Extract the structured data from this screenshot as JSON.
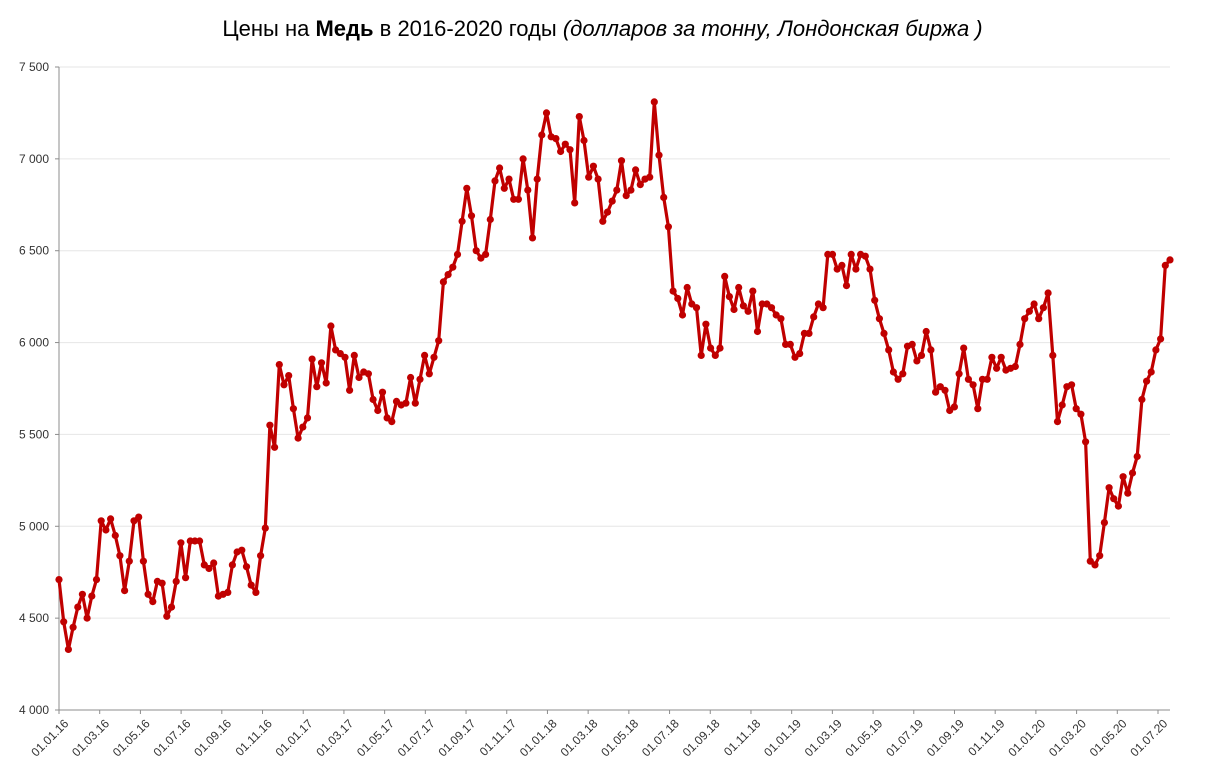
{
  "title": {
    "prefix": "Цены на ",
    "bold": "Медь",
    "middle": " в 2016-2020 годы ",
    "italic": "(долларов за тонну, Лондонская биржа )"
  },
  "chart_data": {
    "type": "line",
    "title": "Цены на Медь в 2016-2020 годы (долларов за тонну, Лондонская биржа )",
    "xlabel": "",
    "ylabel": "",
    "ylim": [
      4000,
      7500
    ],
    "y_ticks": [
      4000,
      4500,
      5000,
      5500,
      6000,
      6500,
      7000,
      7500
    ],
    "y_tick_labels": [
      "4 000",
      "4 500",
      "5 000",
      "5 500",
      "6 000",
      "6 500",
      "7 000",
      "7 500"
    ],
    "x_tick_labels": [
      "01.01.16",
      "01.03.16",
      "01.05.16",
      "01.07.16",
      "01.09.16",
      "01.11.16",
      "01.01.17",
      "01.03.17",
      "01.05.17",
      "01.07.17",
      "01.09.17",
      "01.11.17",
      "01.01.18",
      "01.03.18",
      "01.05.18",
      "01.07.18",
      "01.09.18",
      "01.11.18",
      "01.01.19",
      "01.03.19",
      "01.05.19",
      "01.07.19",
      "01.09.19",
      "01.11.19",
      "01.01.20",
      "01.03.20",
      "01.05.20",
      "01.07.20"
    ],
    "grid": true,
    "legend": "none",
    "line_color": "#c00000",
    "series": [
      {
        "values": [
          4710,
          4480,
          4330,
          4450,
          4560,
          4630,
          4500,
          4620,
          4710,
          5030,
          4980,
          5040,
          4950,
          4840,
          4650,
          4810,
          5030,
          5050,
          4810,
          4630,
          4590,
          4700,
          4690,
          4510,
          4560,
          4700,
          4910,
          4720,
          4920,
          4920,
          4920,
          4790,
          4770,
          4800,
          4620,
          4630,
          4640,
          4790,
          4860,
          4870,
          4780,
          4680,
          4640,
          4840,
          4990,
          5550,
          5430,
          5880,
          5770,
          5820,
          5640,
          5480,
          5540,
          5590,
          5910,
          5760,
          5890,
          5780,
          6090,
          5960,
          5940,
          5920,
          5740,
          5930,
          5810,
          5840,
          5830,
          5690,
          5630,
          5730,
          5590,
          5570,
          5680,
          5660,
          5670,
          5810,
          5670,
          5800,
          5930,
          5830,
          5920,
          6010,
          6330,
          6370,
          6410,
          6480,
          6660,
          6840,
          6690,
          6500,
          6460,
          6480,
          6670,
          6880,
          6950,
          6840,
          6890,
          6780,
          6780,
          7000,
          6830,
          6570,
          6890,
          7130,
          7250,
          7120,
          7110,
          7040,
          7080,
          7050,
          6760,
          7230,
          7100,
          6900,
          6960,
          6890,
          6660,
          6710,
          6770,
          6830,
          6990,
          6800,
          6830,
          6940,
          6860,
          6890,
          6900,
          7310,
          7020,
          6790,
          6630,
          6280,
          6240,
          6150,
          6300,
          6210,
          6190,
          5930,
          6100,
          5970,
          5930,
          5970,
          6360,
          6250,
          6180,
          6300,
          6200,
          6170,
          6280,
          6060,
          6210,
          6210,
          6190,
          6150,
          6130,
          5990,
          5990,
          5920,
          5940,
          6050,
          6050,
          6140,
          6210,
          6190,
          6480,
          6480,
          6400,
          6420,
          6310,
          6480,
          6400,
          6480,
          6470,
          6400,
          6230,
          6130,
          6050,
          5960,
          5840,
          5800,
          5830,
          5980,
          5990,
          5900,
          5930,
          6060,
          5960,
          5730,
          5760,
          5740,
          5630,
          5650,
          5830,
          5970,
          5800,
          5770,
          5640,
          5800,
          5800,
          5920,
          5860,
          5920,
          5850,
          5860,
          5870,
          5990,
          6130,
          6170,
          6210,
          6130,
          6190,
          6270,
          5930,
          5570,
          5660,
          5760,
          5770,
          5640,
          5610,
          5460,
          4810,
          4790,
          4840,
          5020,
          5210,
          5150,
          5110,
          5270,
          5180,
          5290,
          5380,
          5690,
          5790,
          5840,
          5960,
          6020,
          6420,
          6450
        ]
      }
    ]
  }
}
